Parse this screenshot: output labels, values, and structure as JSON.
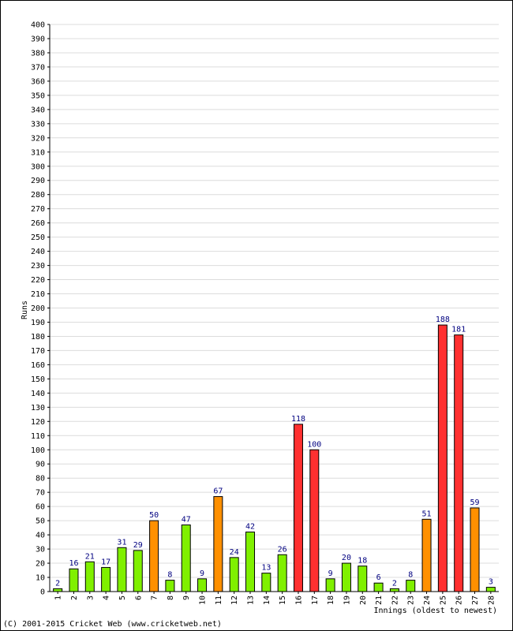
{
  "chart_data": {
    "type": "bar",
    "xlabel": "Innings (oldest to newest)",
    "ylabel": "Runs",
    "ylim": [
      0,
      400
    ],
    "y_tick_step": 10,
    "grid": true,
    "categories": [
      "1",
      "2",
      "3",
      "4",
      "5",
      "6",
      "7",
      "8",
      "9",
      "10",
      "11",
      "12",
      "13",
      "14",
      "15",
      "16",
      "17",
      "18",
      "19",
      "20",
      "21",
      "22",
      "23",
      "24",
      "25",
      "26",
      "27",
      "28"
    ],
    "values": [
      2,
      16,
      21,
      17,
      31,
      29,
      50,
      8,
      47,
      9,
      67,
      24,
      42,
      13,
      26,
      118,
      100,
      9,
      20,
      18,
      6,
      2,
      8,
      51,
      188,
      181,
      59,
      3
    ],
    "colors": {
      "green": "#80f000",
      "orange": "#ff9000",
      "red": "#ff3030",
      "value_label": "#000080",
      "grid": "#dcdcdc"
    },
    "bar_color_keys": [
      "green",
      "green",
      "green",
      "green",
      "green",
      "green",
      "orange",
      "green",
      "green",
      "green",
      "orange",
      "green",
      "green",
      "green",
      "green",
      "red",
      "red",
      "green",
      "green",
      "green",
      "green",
      "green",
      "green",
      "orange",
      "red",
      "red",
      "orange",
      "green"
    ]
  },
  "footer": {
    "copyright": "(C) 2001-2015 Cricket Web (www.cricketweb.net)"
  }
}
